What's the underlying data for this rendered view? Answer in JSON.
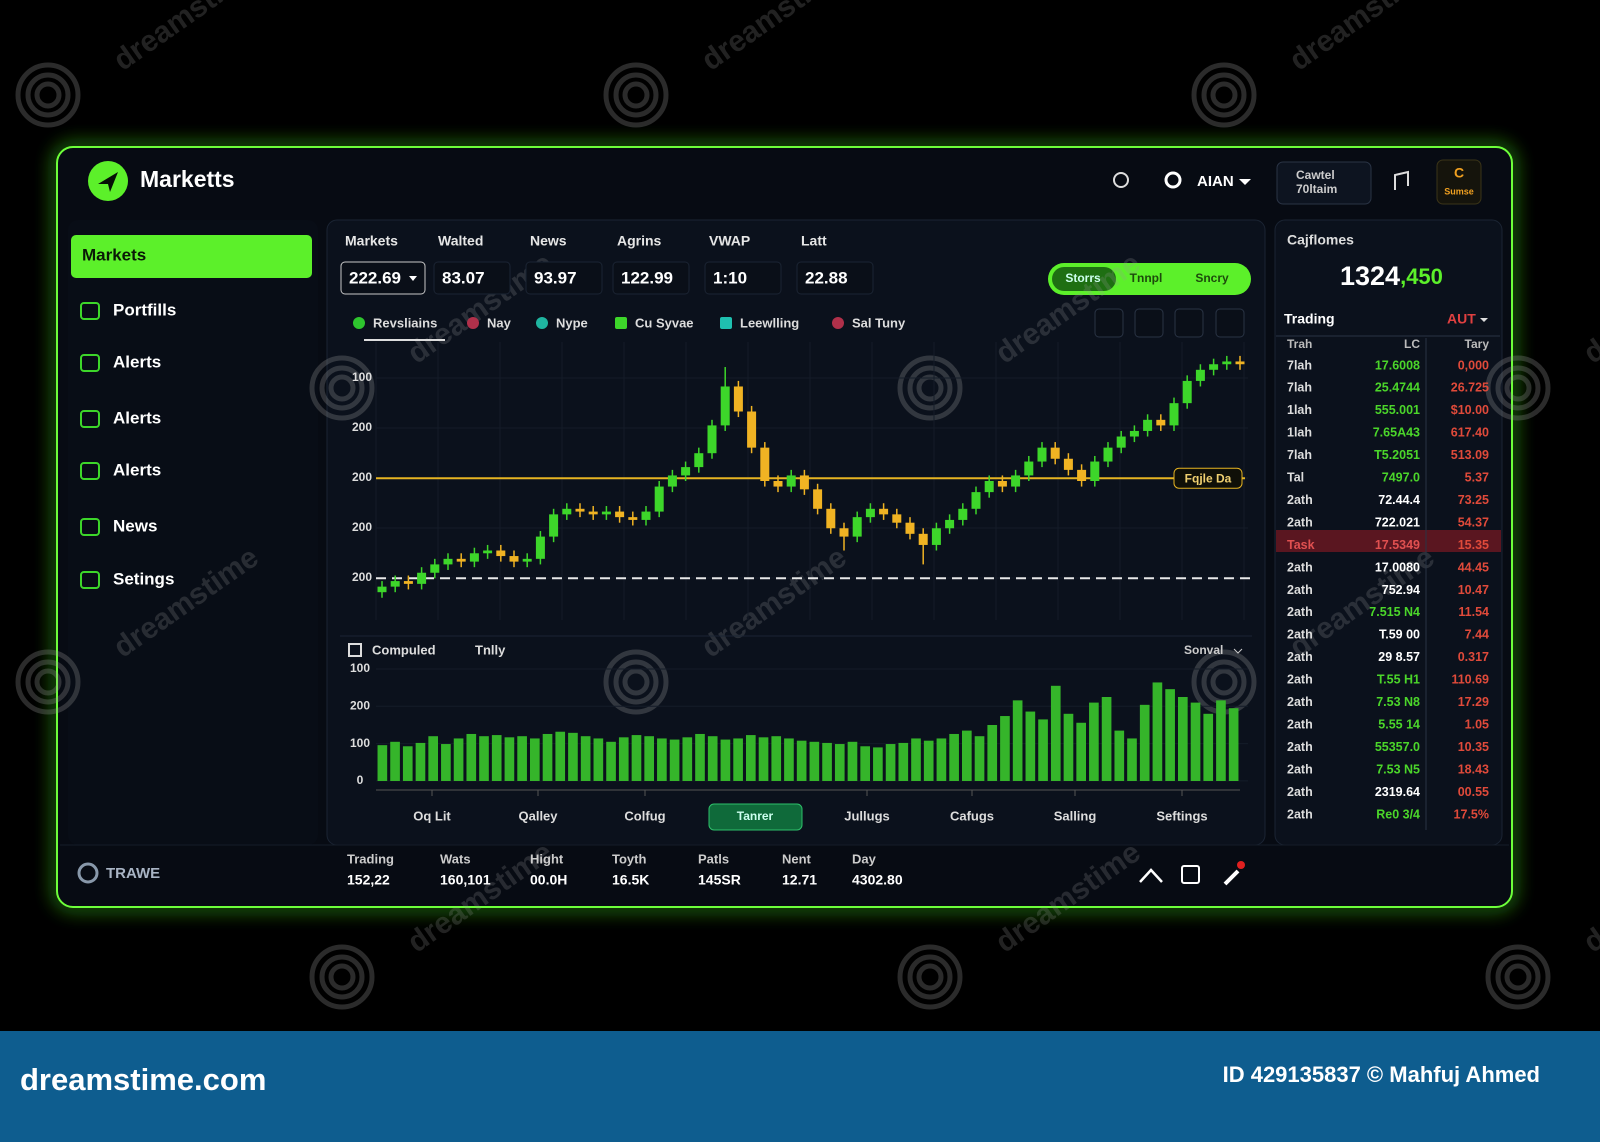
{
  "header": {
    "logo": "Marketts",
    "user": "AIAN",
    "account": {
      "line1": "Cawtel",
      "line2": "70ltaim"
    },
    "badge": {
      "line1": "C",
      "line2": "Sumse"
    }
  },
  "sidebar": {
    "items": [
      "Markets",
      "Portfills",
      "Alerts",
      "Alerts",
      "Alerts",
      "News",
      "Setings"
    ],
    "active": 0
  },
  "stats": [
    {
      "label": "Markets",
      "value": "222.69"
    },
    {
      "label": "Walted",
      "value": "83.07"
    },
    {
      "label": "News",
      "value": "93.97"
    },
    {
      "label": "Agrins",
      "value": "122.99"
    },
    {
      "label": "VWAP",
      "value": "1:10"
    },
    {
      "label": "Latt",
      "value": "22.88"
    }
  ],
  "toggle": [
    "Storrs",
    "Tnnpl",
    "Sncry"
  ],
  "legend": [
    {
      "name": "Revsliains",
      "color": "#2ec52e",
      "shape": "dot"
    },
    {
      "name": "Nay",
      "color": "#b0304a",
      "shape": "dot"
    },
    {
      "name": "Nype",
      "color": "#1fb5a0",
      "shape": "dot"
    },
    {
      "name": "Cu Syvae",
      "color": "#3dd62a",
      "shape": "square"
    },
    {
      "name": "Leewlling",
      "color": "#1fc0b0",
      "shape": "square"
    },
    {
      "name": "Sal Tuny",
      "color": "#b0304a",
      "shape": "dot"
    }
  ],
  "chart_data": [
    {
      "type": "candlestick",
      "ylim": [
        0,
        100
      ],
      "y_axis_labels": [
        "100",
        "200",
        "200",
        "200",
        "200"
      ],
      "colors": {
        "up": "#3dd62a",
        "down": "#f0b323"
      },
      "reference_line": {
        "value": 51,
        "label": "Fqjle Da",
        "color": "#e6b422"
      },
      "baseline": {
        "value": 15,
        "color": "#e8e8e8"
      },
      "candles": [
        [
          10,
          14,
          8,
          12
        ],
        [
          12,
          16,
          10,
          14
        ],
        [
          14,
          16,
          11,
          13
        ],
        [
          13,
          19,
          11,
          17
        ],
        [
          17,
          22,
          15,
          20
        ],
        [
          20,
          24,
          18,
          22
        ],
        [
          22,
          24,
          19,
          21
        ],
        [
          21,
          26,
          19,
          24
        ],
        [
          24,
          27,
          22,
          25
        ],
        [
          25,
          27,
          21,
          23
        ],
        [
          23,
          25,
          19,
          21
        ],
        [
          21,
          24,
          19,
          22
        ],
        [
          22,
          32,
          20,
          30
        ],
        [
          30,
          40,
          28,
          38
        ],
        [
          38,
          42,
          36,
          40
        ],
        [
          40,
          42,
          37,
          39
        ],
        [
          39,
          41,
          36,
          38
        ],
        [
          38,
          41,
          36,
          39
        ],
        [
          39,
          41,
          35,
          37
        ],
        [
          37,
          39,
          34,
          36
        ],
        [
          36,
          41,
          34,
          39
        ],
        [
          39,
          50,
          37,
          48
        ],
        [
          48,
          54,
          46,
          52
        ],
        [
          52,
          57,
          50,
          55
        ],
        [
          55,
          62,
          53,
          60
        ],
        [
          60,
          72,
          58,
          70
        ],
        [
          70,
          91,
          68,
          84
        ],
        [
          84,
          86,
          73,
          75
        ],
        [
          75,
          77,
          60,
          62
        ],
        [
          62,
          64,
          48,
          50
        ],
        [
          50,
          52,
          46,
          48
        ],
        [
          48,
          54,
          46,
          52
        ],
        [
          52,
          54,
          45,
          47
        ],
        [
          47,
          49,
          38,
          40
        ],
        [
          40,
          42,
          31,
          33
        ],
        [
          33,
          35,
          25,
          30
        ],
        [
          30,
          39,
          28,
          37
        ],
        [
          37,
          42,
          35,
          40
        ],
        [
          40,
          42,
          36,
          38
        ],
        [
          38,
          40,
          33,
          35
        ],
        [
          35,
          37,
          29,
          31
        ],
        [
          31,
          33,
          20,
          27
        ],
        [
          27,
          35,
          25,
          33
        ],
        [
          33,
          38,
          31,
          36
        ],
        [
          36,
          42,
          34,
          40
        ],
        [
          40,
          48,
          38,
          46
        ],
        [
          46,
          52,
          44,
          50
        ],
        [
          50,
          52,
          46,
          48
        ],
        [
          48,
          54,
          46,
          52
        ],
        [
          52,
          59,
          50,
          57
        ],
        [
          57,
          64,
          55,
          62
        ],
        [
          62,
          64,
          56,
          58
        ],
        [
          58,
          60,
          52,
          54
        ],
        [
          54,
          56,
          48,
          50
        ],
        [
          50,
          59,
          48,
          57
        ],
        [
          57,
          64,
          55,
          62
        ],
        [
          62,
          68,
          60,
          66
        ],
        [
          66,
          70,
          64,
          68
        ],
        [
          68,
          74,
          66,
          72
        ],
        [
          72,
          74,
          68,
          70
        ],
        [
          70,
          80,
          68,
          78
        ],
        [
          78,
          88,
          76,
          86
        ],
        [
          86,
          92,
          84,
          90
        ],
        [
          90,
          94,
          88,
          92
        ],
        [
          92,
          95,
          90,
          93
        ],
        [
          93,
          95,
          90,
          92
        ]
      ]
    },
    {
      "type": "bar",
      "title": "Compuled",
      "secondary": "Tnlly",
      "selector": "Sonval",
      "ylim": [
        0,
        100
      ],
      "y_axis_labels": [
        "100",
        "200",
        "100",
        "0"
      ],
      "color": "#35b52a",
      "x_labels": [
        "Oq Lit",
        "Qalley",
        "Colfug",
        "Jullugs",
        "Cafugs",
        "Salling",
        "Seftings"
      ],
      "button": "Tanrer",
      "values": [
        32,
        35,
        31,
        34,
        40,
        33,
        38,
        42,
        40,
        41,
        39,
        40,
        38,
        42,
        44,
        43,
        40,
        38,
        35,
        39,
        41,
        40,
        38,
        37,
        39,
        42,
        40,
        37,
        38,
        41,
        39,
        40,
        38,
        36,
        35,
        34,
        33,
        35,
        31,
        30,
        33,
        34,
        38,
        36,
        38,
        42,
        45,
        40,
        50,
        58,
        72,
        62,
        55,
        85,
        60,
        52,
        70,
        75,
        45,
        38,
        68,
        88,
        82,
        75,
        70,
        60,
        72,
        65
      ]
    }
  ],
  "orderbook": {
    "title": "Cajflomes",
    "total": "1324",
    "total_suffix": ",450",
    "section": "Trading",
    "selector": "AUT",
    "columns": [
      "Trah",
      "LC",
      "Tary"
    ],
    "highlight": 8,
    "rows": [
      {
        "cells": [
          "7lah",
          "17.6008",
          "0,000"
        ],
        "tone": "green"
      },
      {
        "cells": [
          "7lah",
          "25.4744",
          "26.725"
        ],
        "tone": "green"
      },
      {
        "cells": [
          "1lah",
          "555.001",
          "$10.00"
        ],
        "tone": "green"
      },
      {
        "cells": [
          "1lah",
          "7.65A43",
          "617.40"
        ],
        "tone": "green"
      },
      {
        "cells": [
          "7lah",
          "T5.2051",
          "513.09"
        ],
        "tone": "green"
      },
      {
        "cells": [
          "Tal",
          "7497.0",
          "5.37"
        ],
        "tone": "green"
      },
      {
        "cells": [
          "2ath",
          "72.44.4",
          "73.25"
        ],
        "tone": "white"
      },
      {
        "cells": [
          "2ath",
          "722.021",
          "54.37"
        ],
        "tone": "white"
      },
      {
        "cells": [
          "Task",
          "17.5349",
          "15.35"
        ],
        "tone": "white"
      },
      {
        "cells": [
          "2ath",
          "17.0080",
          "44.45"
        ],
        "tone": "white"
      },
      {
        "cells": [
          "2ath",
          "752.94",
          "10.47"
        ],
        "tone": "white"
      },
      {
        "cells": [
          "2ath",
          "7.515 N4",
          "11.54"
        ],
        "tone": "green"
      },
      {
        "cells": [
          "2ath",
          "T.59 00",
          "7.44"
        ],
        "tone": "white"
      },
      {
        "cells": [
          "2ath",
          "29 8.57",
          "0.317"
        ],
        "tone": "white"
      },
      {
        "cells": [
          "2ath",
          "T.55 H1",
          "110.69"
        ],
        "tone": "green"
      },
      {
        "cells": [
          "2ath",
          "7.53 N8",
          "17.29"
        ],
        "tone": "green"
      },
      {
        "cells": [
          "2ath",
          "5.55 14",
          "1.05"
        ],
        "tone": "green"
      },
      {
        "cells": [
          "2ath",
          "55357.0",
          "10.35"
        ],
        "tone": "green"
      },
      {
        "cells": [
          "2ath",
          "7.53 N5",
          "18.43"
        ],
        "tone": "green"
      },
      {
        "cells": [
          "2ath",
          "2319.64",
          "00.55"
        ],
        "tone": "white"
      },
      {
        "cells": [
          "2ath",
          "Re0 3/4",
          "17.5%"
        ],
        "tone": "green"
      }
    ]
  },
  "footer": {
    "brand": "TRAWE",
    "stats": [
      {
        "label": "Trading",
        "value": "152,22"
      },
      {
        "label": "Wats",
        "value": "160,101"
      },
      {
        "label": "Hight",
        "value": "00.0H"
      },
      {
        "label": "Toyth",
        "value": "16.5K"
      },
      {
        "label": "Patls",
        "value": "145SR"
      },
      {
        "label": "Nent",
        "value": "12.71"
      },
      {
        "label": "Day",
        "value": "4302.80"
      }
    ]
  },
  "watermark": {
    "tile": "dreamstime",
    "site": "dreamstime.com",
    "credit": "ID 429135837 © Mahfuj Ahmed"
  }
}
